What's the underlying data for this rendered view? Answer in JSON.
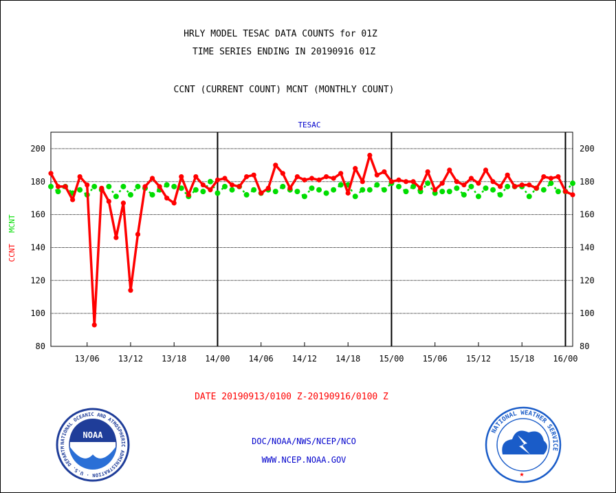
{
  "header": {
    "title_line1": "HRLY MODEL TESAC DATA COUNTS for 01Z",
    "title_line2": "TIME SERIES ENDING IN 20190916 01Z",
    "subtitle": "CCNT (CURRENT COUNT) MCNT (MONTHLY COUNT)"
  },
  "footer": {
    "date_range": "DATE 20190913/0100 Z-20190916/0100 Z",
    "org_line": "DOC/NOAA/NWS/NCEP/NCO",
    "website": "WWW.NCEP.NOAA.GOV",
    "noaa_logo_text": "NOAA",
    "noaa_ring_text": "NATIONAL OCEANIC AND ATMOSPHERIC ADMINISTRATION · U.S. DEPARTMENT OF COMMERCE ·",
    "nws_ring_text": "NATIONAL WEATHER SERVICE"
  },
  "colors": {
    "ccnt": "#ff0000",
    "mcnt": "#00dd00",
    "plot_title": "#0000cc",
    "footer_text": "#0000cc",
    "date_text": "#ff0000",
    "noaa_blue": "#1f3d99",
    "nws_blue": "#1a5cc8"
  },
  "chart_data": {
    "type": "line",
    "title": "TESAC",
    "ylabel_ccnt": "CCNT",
    "ylabel_mcnt": "MCNT",
    "ylim": [
      80,
      210
    ],
    "yticks": [
      80,
      100,
      120,
      140,
      160,
      180,
      200
    ],
    "x_start_hour": 1,
    "x_end_hour": 73,
    "xticks": [
      {
        "hour": 6,
        "label": "13/06"
      },
      {
        "hour": 12,
        "label": "13/12"
      },
      {
        "hour": 18,
        "label": "13/18"
      },
      {
        "hour": 24,
        "label": "14/00"
      },
      {
        "hour": 30,
        "label": "14/06"
      },
      {
        "hour": 36,
        "label": "14/12"
      },
      {
        "hour": 42,
        "label": "14/18"
      },
      {
        "hour": 48,
        "label": "15/00"
      },
      {
        "hour": 54,
        "label": "15/06"
      },
      {
        "hour": 60,
        "label": "15/12"
      },
      {
        "hour": 66,
        "label": "15/18"
      },
      {
        "hour": 72,
        "label": "16/00"
      }
    ],
    "day_boundaries": [
      24,
      48,
      72
    ],
    "grid": true,
    "series": [
      {
        "name": "CCNT",
        "color": "#ff0000",
        "values": [
          185,
          177,
          177,
          169,
          183,
          178,
          93,
          176,
          168,
          146,
          167,
          114,
          148,
          177,
          182,
          177,
          170,
          167,
          183,
          172,
          183,
          178,
          175,
          181,
          182,
          178,
          177,
          183,
          184,
          173,
          176,
          190,
          185,
          176,
          183,
          181,
          182,
          181,
          183,
          182,
          185,
          173,
          188,
          180,
          196,
          184,
          186,
          180,
          181,
          180,
          180,
          176,
          186,
          175,
          179,
          187,
          180,
          178,
          182,
          179,
          187,
          180,
          177,
          184,
          177,
          178,
          178,
          176,
          183,
          182,
          183,
          174,
          172
        ]
      },
      {
        "name": "MCNT",
        "color": "#00dd00",
        "values": [
          177,
          174,
          177,
          173,
          175,
          172,
          177,
          175,
          177,
          171,
          177,
          172,
          177,
          176,
          172,
          175,
          178,
          177,
          176,
          171,
          175,
          174,
          180,
          173,
          177,
          175,
          177,
          172,
          175,
          173,
          175,
          174,
          177,
          175,
          174,
          171,
          176,
          175,
          173,
          175,
          178,
          178,
          171,
          175,
          175,
          178,
          175,
          179,
          177,
          174,
          177,
          174,
          179,
          173,
          174,
          174,
          176,
          172,
          177,
          171,
          176,
          175,
          172,
          177,
          177,
          177,
          171,
          176,
          175,
          179,
          174,
          174,
          179
        ]
      }
    ]
  }
}
